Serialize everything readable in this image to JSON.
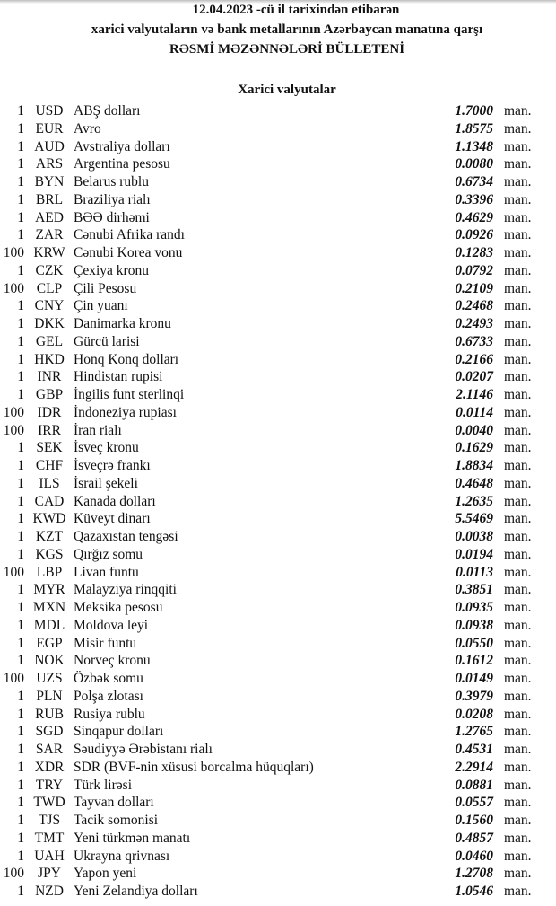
{
  "header": {
    "line1": "12.04.2023 -cü il tarixindən etibarən",
    "line2": "xarici valyutaların və bank metallarının Azərbaycan manatına qarşı",
    "line3": "RƏSMİ MƏZƏNNƏLƏRİ BÜLLETENİ"
  },
  "section_title": "Xarici valyutalar",
  "unit": "man.",
  "rates": [
    {
      "mult": "1",
      "code": "USD",
      "name": "ABŞ dolları",
      "value": "1.7000"
    },
    {
      "mult": "1",
      "code": "EUR",
      "name": "Avro",
      "value": "1.8575"
    },
    {
      "mult": "1",
      "code": "AUD",
      "name": "Avstraliya dolları",
      "value": "1.1348"
    },
    {
      "mult": "1",
      "code": "ARS",
      "name": "Argentina pesosu",
      "value": "0.0080"
    },
    {
      "mult": "1",
      "code": "BYN",
      "name": "Belarus rublu",
      "value": "0.6734"
    },
    {
      "mult": "1",
      "code": "BRL",
      "name": "Braziliya rialı",
      "value": "0.3396"
    },
    {
      "mult": "1",
      "code": "AED",
      "name": "BƏƏ dirhəmi",
      "value": "0.4629"
    },
    {
      "mult": "1",
      "code": "ZAR",
      "name": "Cənubi Afrika randı",
      "value": "0.0926"
    },
    {
      "mult": "100",
      "code": "KRW",
      "name": "Cənubi Korea vonu",
      "value": "0.1283"
    },
    {
      "mult": "1",
      "code": "CZK",
      "name": "Çexiya kronu",
      "value": "0.0792"
    },
    {
      "mult": "100",
      "code": "CLP",
      "name": "Çili Pesosu",
      "value": "0.2109"
    },
    {
      "mult": "1",
      "code": "CNY",
      "name": "Çin yuanı",
      "value": "0.2468"
    },
    {
      "mult": "1",
      "code": "DKK",
      "name": "Danimarka kronu",
      "value": "0.2493"
    },
    {
      "mult": "1",
      "code": "GEL",
      "name": "Gürcü larisi",
      "value": "0.6733"
    },
    {
      "mult": "1",
      "code": "HKD",
      "name": "Honq Konq dolları",
      "value": "0.2166"
    },
    {
      "mult": "1",
      "code": "INR",
      "name": "Hindistan rupisi",
      "value": "0.0207"
    },
    {
      "mult": "1",
      "code": "GBP",
      "name": "İngilis funt sterlinqi",
      "value": "2.1146"
    },
    {
      "mult": "100",
      "code": "IDR",
      "name": "İndoneziya rupiası",
      "value": "0.0114"
    },
    {
      "mult": "100",
      "code": "IRR",
      "name": "İran rialı",
      "value": "0.0040"
    },
    {
      "mult": "1",
      "code": "SEK",
      "name": "İsveç kronu",
      "value": "0.1629"
    },
    {
      "mult": "1",
      "code": "CHF",
      "name": "İsveçrə frankı",
      "value": "1.8834"
    },
    {
      "mult": "1",
      "code": "ILS",
      "name": "İsrail şekeli",
      "value": "0.4648"
    },
    {
      "mult": "1",
      "code": "CAD",
      "name": "Kanada dolları",
      "value": "1.2635"
    },
    {
      "mult": "1",
      "code": "KWD",
      "name": "Küveyt dinarı",
      "value": "5.5469"
    },
    {
      "mult": "1",
      "code": "KZT",
      "name": "Qazaxıstan tengəsi",
      "value": "0.0038"
    },
    {
      "mult": "1",
      "code": "KGS",
      "name": "Qırğız somu",
      "value": "0.0194"
    },
    {
      "mult": "100",
      "code": "LBP",
      "name": "Livan funtu",
      "value": "0.0113"
    },
    {
      "mult": "1",
      "code": "MYR",
      "name": "Malayziya rinqqiti",
      "value": "0.3851"
    },
    {
      "mult": "1",
      "code": "MXN",
      "name": "Meksika pesosu",
      "value": "0.0935"
    },
    {
      "mult": "1",
      "code": "MDL",
      "name": "Moldova leyi",
      "value": "0.0938"
    },
    {
      "mult": "1",
      "code": "EGP",
      "name": "Misir funtu",
      "value": "0.0550"
    },
    {
      "mult": "1",
      "code": "NOK",
      "name": "Norveç kronu",
      "value": "0.1612"
    },
    {
      "mult": "100",
      "code": "UZS",
      "name": "Özbək somu",
      "value": "0.0149"
    },
    {
      "mult": "1",
      "code": "PLN",
      "name": "Polşa zlotası",
      "value": "0.3979"
    },
    {
      "mult": "1",
      "code": "RUB",
      "name": "Rusiya rublu",
      "value": "0.0208"
    },
    {
      "mult": "1",
      "code": "SGD",
      "name": "Sinqapur dolları",
      "value": "1.2765"
    },
    {
      "mult": "1",
      "code": "SAR",
      "name": "Səudiyyə Ərəbistanı rialı",
      "value": "0.4531"
    },
    {
      "mult": "1",
      "code": "XDR",
      "name": "SDR (BVF-nin xüsusi borcalma hüquqları)",
      "value": "2.2914"
    },
    {
      "mult": "1",
      "code": "TRY",
      "name": "Türk lirəsi",
      "value": "0.0881"
    },
    {
      "mult": "1",
      "code": "TWD",
      "name": "Tayvan dolları",
      "value": "0.0557"
    },
    {
      "mult": "1",
      "code": "TJS",
      "name": "Tacik somonisi",
      "value": "0.1560"
    },
    {
      "mult": "1",
      "code": "TMT",
      "name": "Yeni türkmən manatı",
      "value": "0.4857"
    },
    {
      "mult": "1",
      "code": "UAH",
      "name": "Ukrayna qrivnası",
      "value": "0.0460"
    },
    {
      "mult": "100",
      "code": "JPY",
      "name": "Yapon yeni",
      "value": "1.2708"
    },
    {
      "mult": "1",
      "code": "NZD",
      "name": "Yeni Zelandiya dolları",
      "value": "1.0546"
    }
  ]
}
